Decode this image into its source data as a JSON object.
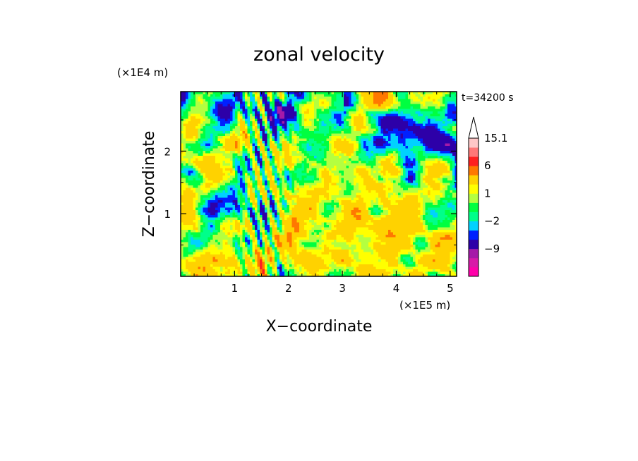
{
  "chart_data": {
    "type": "heatmap",
    "title": "zonal velocity",
    "xlabel": "X−coordinate",
    "ylabel": "Z−coordinate",
    "x_unit": "(×1E5 m)",
    "y_unit": "(×1E4 m)",
    "time_label": "t=34200 s",
    "xlim": [
      0,
      5.12
    ],
    "ylim": [
      0,
      2.95
    ],
    "x_ticks": [
      1,
      2,
      3,
      4,
      5
    ],
    "y_ticks": [
      1,
      2
    ],
    "colorbar": {
      "levels": [
        -15,
        -12,
        -9,
        -6,
        -3,
        -2,
        -1,
        0,
        1,
        2,
        3,
        6,
        9,
        12,
        15.1
      ],
      "labels": [
        "15.1",
        "6",
        "1",
        "−2",
        "−9"
      ],
      "colors": [
        "#ff00aa",
        "#d81aa8",
        "#a51aa8",
        "#2d00a8",
        "#0020ff",
        "#00d2ff",
        "#00ff8a",
        "#00ff40",
        "#b4ff40",
        "#ffff00",
        "#ffd200",
        "#ff7800",
        "#ff2020",
        "#ff7878",
        "#ffc8c8"
      ],
      "extend": "max"
    }
  }
}
